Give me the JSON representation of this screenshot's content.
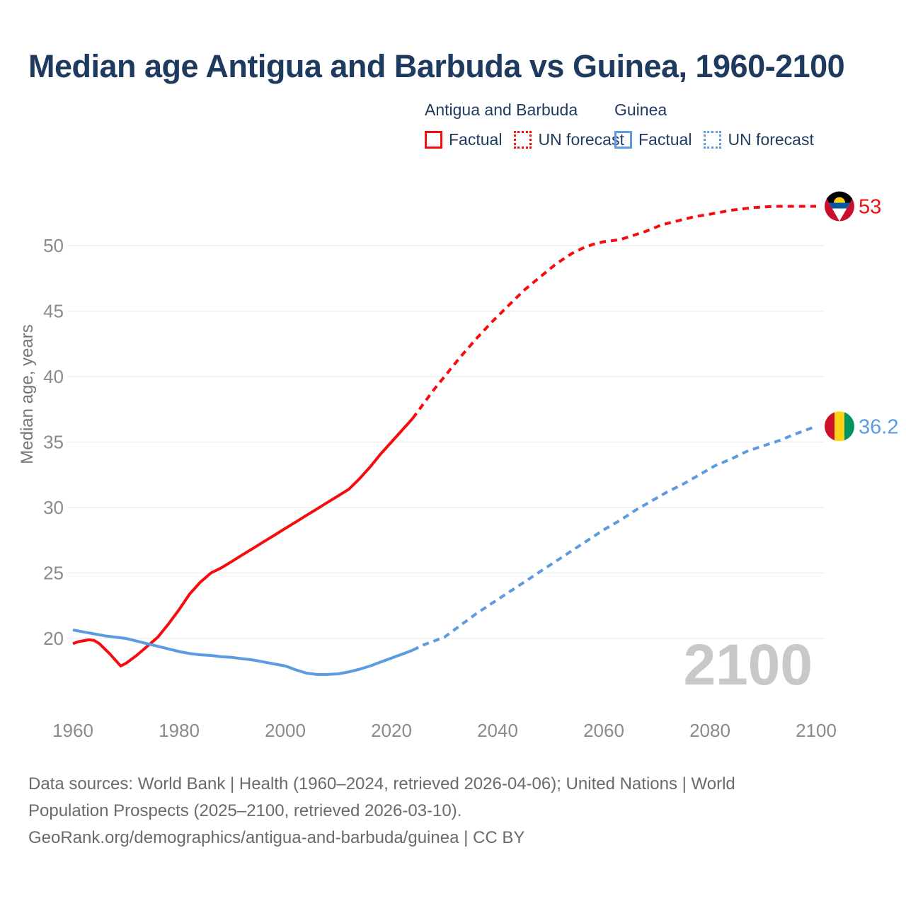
{
  "title": "Median age Antigua and Barbuda vs Guinea, 1960-2100",
  "legend": {
    "groups": [
      {
        "name": "Antigua and Barbuda",
        "color": "#f50d0d",
        "items": [
          {
            "label": "Factual",
            "style": "solid"
          },
          {
            "label": "UN forecast",
            "style": "dotted"
          }
        ]
      },
      {
        "name": "Guinea",
        "color": "#5b9be0",
        "items": [
          {
            "label": "Factual",
            "style": "solid"
          },
          {
            "label": "UN forecast",
            "style": "dotted"
          }
        ]
      }
    ]
  },
  "y_axis": {
    "label": "Median age, years",
    "ticks": [
      20,
      25,
      30,
      35,
      40,
      45,
      50
    ]
  },
  "x_axis": {
    "ticks": [
      1960,
      1980,
      2000,
      2020,
      2040,
      2060,
      2080,
      2100
    ]
  },
  "watermark": "2100",
  "end_labels": [
    {
      "series": "Antigua and Barbuda",
      "label": "53",
      "value": 53,
      "color": "#f50d0d"
    },
    {
      "series": "Guinea",
      "label": "36.2",
      "value": 36.2,
      "color": "#5b9be0"
    }
  ],
  "footer": {
    "lines": [
      "Data sources: World Bank | Health (1960–2024, retrieved 2026-04-06); United Nations | World",
      "Population Prospects (2025–2100, retrieved 2026-03-10).",
      "GeoRank.org/demographics/antigua-and-barbuda/guinea | CC BY"
    ]
  },
  "chart_data": {
    "type": "line",
    "title": "Median age Antigua and Barbuda vs Guinea, 1960-2100",
    "xlabel": "",
    "ylabel": "Median age, years",
    "xlim": [
      1959,
      2101
    ],
    "ylim": [
      16.5,
      54
    ],
    "grid": "horizontal",
    "series": [
      {
        "name": "Antigua and Barbuda — Factual",
        "color": "#f50d0d",
        "style": "solid",
        "points": [
          [
            1960,
            19.6
          ],
          [
            1961,
            19.75
          ],
          [
            1963,
            19.9
          ],
          [
            1964,
            19.85
          ],
          [
            1965,
            19.6
          ],
          [
            1967,
            18.8
          ],
          [
            1969,
            17.9
          ],
          [
            1970,
            18.1
          ],
          [
            1972,
            18.7
          ],
          [
            1974,
            19.4
          ],
          [
            1976,
            20.1
          ],
          [
            1978,
            21.1
          ],
          [
            1980,
            22.2
          ],
          [
            1982,
            23.4
          ],
          [
            1984,
            24.3
          ],
          [
            1986,
            25.0
          ],
          [
            1988,
            25.4
          ],
          [
            1990,
            25.9
          ],
          [
            1992,
            26.4
          ],
          [
            1994,
            26.9
          ],
          [
            1996,
            27.4
          ],
          [
            1998,
            27.9
          ],
          [
            2000,
            28.4
          ],
          [
            2002,
            28.9
          ],
          [
            2004,
            29.4
          ],
          [
            2006,
            29.9
          ],
          [
            2008,
            30.4
          ],
          [
            2010,
            30.9
          ],
          [
            2012,
            31.4
          ],
          [
            2014,
            32.2
          ],
          [
            2016,
            33.1
          ],
          [
            2018,
            34.1
          ],
          [
            2020,
            35.0
          ],
          [
            2022,
            35.9
          ],
          [
            2024,
            36.8
          ]
        ]
      },
      {
        "name": "Antigua and Barbuda — UN forecast",
        "color": "#f50d0d",
        "style": "dashed",
        "points": [
          [
            2024,
            36.8
          ],
          [
            2026,
            37.9
          ],
          [
            2028,
            39.0
          ],
          [
            2030,
            40.0
          ],
          [
            2033,
            41.5
          ],
          [
            2036,
            42.9
          ],
          [
            2039,
            44.2
          ],
          [
            2042,
            45.4
          ],
          [
            2045,
            46.6
          ],
          [
            2048,
            47.6
          ],
          [
            2051,
            48.6
          ],
          [
            2054,
            49.4
          ],
          [
            2056,
            49.8
          ],
          [
            2058,
            50.1
          ],
          [
            2060,
            50.3
          ],
          [
            2063,
            50.45
          ],
          [
            2065,
            50.7
          ],
          [
            2068,
            51.1
          ],
          [
            2071,
            51.6
          ],
          [
            2074,
            51.9
          ],
          [
            2077,
            52.2
          ],
          [
            2080,
            52.4
          ],
          [
            2084,
            52.7
          ],
          [
            2088,
            52.9
          ],
          [
            2092,
            53.0
          ],
          [
            2096,
            53.0
          ],
          [
            2100,
            53.0
          ]
        ]
      },
      {
        "name": "Guinea — Factual",
        "color": "#5b9be0",
        "style": "solid",
        "points": [
          [
            1960,
            20.65
          ],
          [
            1962,
            20.5
          ],
          [
            1964,
            20.35
          ],
          [
            1966,
            20.2
          ],
          [
            1968,
            20.1
          ],
          [
            1970,
            20.0
          ],
          [
            1972,
            19.8
          ],
          [
            1974,
            19.6
          ],
          [
            1976,
            19.4
          ],
          [
            1978,
            19.2
          ],
          [
            1980,
            19.0
          ],
          [
            1982,
            18.85
          ],
          [
            1984,
            18.75
          ],
          [
            1986,
            18.7
          ],
          [
            1988,
            18.6
          ],
          [
            1990,
            18.55
          ],
          [
            1992,
            18.45
          ],
          [
            1994,
            18.35
          ],
          [
            1996,
            18.2
          ],
          [
            1998,
            18.05
          ],
          [
            2000,
            17.9
          ],
          [
            2002,
            17.6
          ],
          [
            2004,
            17.35
          ],
          [
            2006,
            17.25
          ],
          [
            2008,
            17.25
          ],
          [
            2010,
            17.3
          ],
          [
            2012,
            17.45
          ],
          [
            2014,
            17.65
          ],
          [
            2016,
            17.9
          ],
          [
            2018,
            18.2
          ],
          [
            2020,
            18.5
          ],
          [
            2022,
            18.8
          ],
          [
            2024,
            19.1
          ]
        ]
      },
      {
        "name": "Guinea — UN forecast",
        "color": "#5b9be0",
        "style": "dashed",
        "points": [
          [
            2024,
            19.1
          ],
          [
            2026,
            19.5
          ],
          [
            2028,
            19.8
          ],
          [
            2030,
            20.1
          ],
          [
            2033,
            21.0
          ],
          [
            2036,
            21.9
          ],
          [
            2039,
            22.7
          ],
          [
            2042,
            23.5
          ],
          [
            2045,
            24.3
          ],
          [
            2048,
            25.1
          ],
          [
            2051,
            25.9
          ],
          [
            2054,
            26.7
          ],
          [
            2057,
            27.5
          ],
          [
            2060,
            28.3
          ],
          [
            2063,
            29.0
          ],
          [
            2066,
            29.8
          ],
          [
            2069,
            30.5
          ],
          [
            2072,
            31.2
          ],
          [
            2075,
            31.8
          ],
          [
            2078,
            32.5
          ],
          [
            2081,
            33.2
          ],
          [
            2084,
            33.7
          ],
          [
            2087,
            34.3
          ],
          [
            2090,
            34.7
          ],
          [
            2093,
            35.1
          ],
          [
            2096,
            35.6
          ],
          [
            2100,
            36.2
          ]
        ]
      }
    ]
  }
}
